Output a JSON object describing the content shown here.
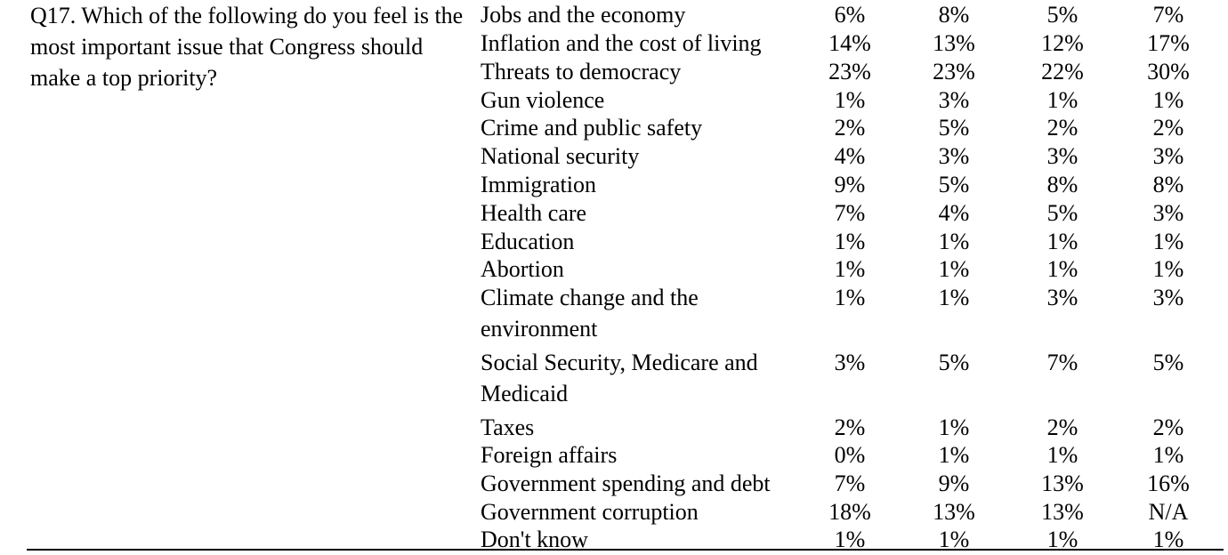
{
  "question": "Q17. Which of the following do you feel is the most important issue that Congress should make a top priority?",
  "rows": [
    {
      "label": "Jobs and the economy",
      "values": [
        "6%",
        "8%",
        "5%",
        "7%"
      ]
    },
    {
      "label": "Inflation and the cost of living",
      "values": [
        "14%",
        "13%",
        "12%",
        "17%"
      ]
    },
    {
      "label": "Threats to democracy",
      "values": [
        "23%",
        "23%",
        "22%",
        "30%"
      ]
    },
    {
      "label": "Gun violence",
      "values": [
        "1%",
        "3%",
        "1%",
        "1%"
      ]
    },
    {
      "label": "Crime and public safety",
      "values": [
        "2%",
        "5%",
        "2%",
        "2%"
      ]
    },
    {
      "label": "National security",
      "values": [
        "4%",
        "3%",
        "3%",
        "3%"
      ]
    },
    {
      "label": "Immigration",
      "values": [
        "9%",
        "5%",
        "8%",
        "8%"
      ]
    },
    {
      "label": "Health care",
      "values": [
        "7%",
        "4%",
        "5%",
        "3%"
      ]
    },
    {
      "label": "Education",
      "values": [
        "1%",
        "1%",
        "1%",
        "1%"
      ]
    },
    {
      "label": "Abortion",
      "values": [
        "1%",
        "1%",
        "1%",
        "1%"
      ]
    },
    {
      "label": "Climate change and the environment",
      "values": [
        "1%",
        "1%",
        "3%",
        "3%"
      ]
    },
    {
      "label": "Social Security, Medicare and Medicaid",
      "values": [
        "3%",
        "5%",
        "7%",
        "5%"
      ]
    },
    {
      "label": "Taxes",
      "values": [
        "2%",
        "1%",
        "2%",
        "2%"
      ]
    },
    {
      "label": "Foreign affairs",
      "values": [
        "0%",
        "1%",
        "1%",
        "1%"
      ]
    },
    {
      "label": "Government spending and debt",
      "values": [
        "7%",
        "9%",
        "13%",
        "16%"
      ]
    },
    {
      "label": "Government corruption",
      "values": [
        "18%",
        "13%",
        "13%",
        "N/A"
      ]
    },
    {
      "label": "Don't know",
      "values": [
        "1%",
        "1%",
        "1%",
        "1%"
      ]
    }
  ]
}
